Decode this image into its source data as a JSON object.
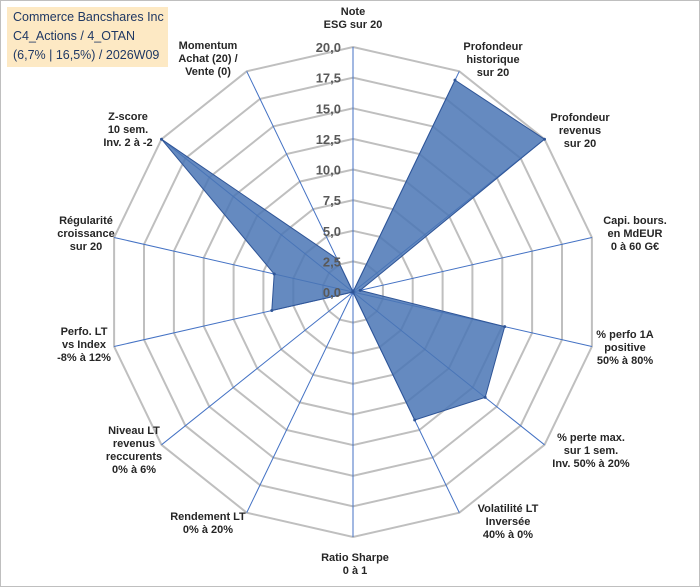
{
  "title": {
    "line1": "Commerce Bancshares Inc",
    "line2": "C4_Actions / 4_OTAN",
    "line3": "(6,7% | 16,5%) / 2026W09"
  },
  "chart_data": {
    "type": "radar",
    "title": "Commerce Bancshares Inc",
    "rlim": [
      0,
      20
    ],
    "rticks": [
      "0,0",
      "2,5",
      "5,0",
      "7,5",
      "10,0",
      "12,5",
      "15,0",
      "17,5",
      "20,0"
    ],
    "axes": [
      {
        "label": [
          "Note",
          "ESG sur 20"
        ],
        "value": 0
      },
      {
        "label": [
          "Profondeur",
          "historique",
          "sur 20"
        ],
        "value": 19.2
      },
      {
        "label": [
          "Profondeur",
          "revenus",
          "sur 20"
        ],
        "value": 20.0
      },
      {
        "label": [
          "Capi. bours.",
          "en MdEUR",
          "0 à 60 G€"
        ],
        "value": 0.6
      },
      {
        "label": [
          "% perfo 1A",
          "positive",
          "50% à 80%"
        ],
        "value": 12.7
      },
      {
        "label": [
          "% perte max.",
          "sur 1 sem.",
          "Inv. 50% à 20%"
        ],
        "value": 13.8
      },
      {
        "label": [
          "Volatilité LT",
          "Inversée",
          "40% à 0%"
        ],
        "value": 11.6
      },
      {
        "label": [
          "Ratio Sharpe",
          "0 à 1"
        ],
        "value": 0
      },
      {
        "label": [
          "Rendement LT",
          "0% à 20%"
        ],
        "value": 0
      },
      {
        "label": [
          "Niveau LT",
          "revenus",
          "reccurents",
          "0% à 6%"
        ],
        "value": 0
      },
      {
        "label": [
          "Perfo. LT",
          "vs Index",
          "-8% à 12%"
        ],
        "value": 6.8
      },
      {
        "label": [
          "Régularité",
          "croissance",
          "sur 20"
        ],
        "value": 6.6
      },
      {
        "label": [
          "Z-score",
          "10 sem.",
          "Inv. 2 à -2"
        ],
        "value": 20.0
      },
      {
        "label": [
          "Momentum",
          "Achat (20) /",
          "Vente (0)"
        ],
        "value": 3.0
      }
    ],
    "colors": {
      "fill": "#4a76b5",
      "stroke": "#2f5597",
      "grid": "#bfbfbf",
      "spoke": "#4472c4"
    }
  }
}
